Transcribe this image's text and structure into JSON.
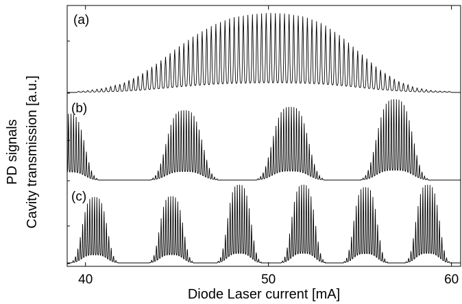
{
  "chart_data": {
    "type": "line",
    "xlabel": "Diode Laser current [mA]",
    "ylabel": [
      "PD signals",
      "Cavity transmission [a.u.]"
    ],
    "xlim": [
      39,
      60.5
    ],
    "xticks": [
      40,
      50,
      60
    ],
    "grid": false,
    "legend": "none",
    "line_color": "#000000",
    "panels": [
      {
        "label": "(a)",
        "description_points": {
          "x": [
            39,
            40,
            41,
            42,
            43,
            44,
            45,
            46,
            47,
            48,
            49,
            50,
            51,
            52,
            53,
            54,
            55,
            56,
            57,
            58,
            59,
            60,
            60.5
          ],
          "envelope": [
            0.0,
            0.02,
            0.05,
            0.11,
            0.22,
            0.38,
            0.56,
            0.72,
            0.85,
            0.94,
            0.98,
            1.0,
            0.99,
            0.95,
            0.86,
            0.7,
            0.5,
            0.3,
            0.15,
            0.06,
            0.02,
            0.01,
            0.0
          ]
        },
        "fringe_period_mA": 0.25
      },
      {
        "label": "(b)",
        "peak_centers_mA": [
          39.1,
          45.4,
          51.2,
          56.9
        ],
        "peak_heights": [
          0.78,
          0.82,
          0.86,
          0.95
        ],
        "peak_widths_mA": [
          1.0,
          1.15,
          1.15,
          1.15
        ],
        "fringe_period_mA": 0.14
      },
      {
        "label": "(c)",
        "peak_centers_mA": [
          40.5,
          44.7,
          48.4,
          51.9,
          55.3,
          58.7
        ],
        "peak_heights": [
          0.8,
          0.81,
          0.95,
          0.95,
          0.92,
          0.95
        ],
        "peak_widths_mA": [
          0.8,
          0.75,
          0.75,
          0.75,
          0.75,
          0.75
        ],
        "fringe_period_mA": 0.13
      }
    ]
  }
}
